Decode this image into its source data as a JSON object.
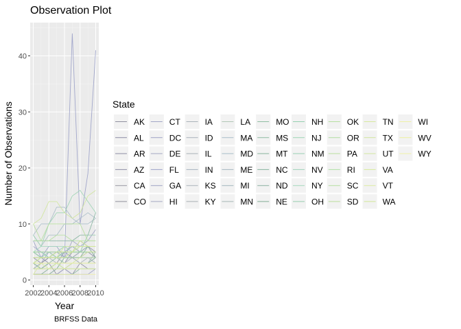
{
  "chart_data": {
    "type": "line",
    "title": "Observation Plot",
    "xlabel": "Year",
    "ylabel": "Number of Observations",
    "caption": "BRFSS Data",
    "xlim": [
      2002,
      2010
    ],
    "ylim": [
      0,
      45
    ],
    "x_ticks": [
      "2002",
      "2004",
      "2006",
      "2008",
      "2010"
    ],
    "y_ticks": [
      "0",
      "10",
      "20",
      "30",
      "40"
    ],
    "grid": true,
    "panel_background": "#ebebeb",
    "legend": {
      "title": "State",
      "placement": "right",
      "columns": 9
    },
    "x": [
      2002,
      2003,
      2004,
      2005,
      2006,
      2007,
      2008,
      2009,
      2010
    ],
    "series": [
      {
        "name": "AK",
        "color": "#8e8e9e",
        "values": [
          2,
          2,
          3,
          1,
          2,
          1,
          3,
          2,
          2
        ]
      },
      {
        "name": "AL",
        "color": "#8a8aa3",
        "values": [
          5,
          4,
          4,
          5,
          5,
          5,
          5,
          5,
          5
        ]
      },
      {
        "name": "AR",
        "color": "#8b8ba4",
        "values": [
          4,
          3,
          4,
          4,
          5,
          6,
          5,
          5,
          4
        ]
      },
      {
        "name": "AZ",
        "color": "#8e8ea6",
        "values": [
          3,
          4,
          3,
          3,
          3,
          5,
          7,
          6,
          5
        ]
      },
      {
        "name": "CA",
        "color": "#9696a0",
        "values": [
          3,
          2,
          3,
          3,
          5,
          4,
          5,
          5,
          5
        ]
      },
      {
        "name": "CO",
        "color": "#8f8f9a",
        "values": [
          3,
          3,
          4,
          4,
          4,
          5,
          5,
          6,
          6
        ]
      },
      {
        "name": "CT",
        "color": "#a2a6c6",
        "values": [
          6,
          5,
          5,
          5,
          5,
          4,
          4,
          5,
          5
        ]
      },
      {
        "name": "DC",
        "color": "#9c9fc4",
        "values": [
          1,
          1,
          1,
          1,
          2,
          1,
          1,
          1,
          2
        ]
      },
      {
        "name": "DE",
        "color": "#a4a8c2",
        "values": [
          3,
          3,
          3,
          3,
          3,
          3,
          3,
          3,
          3
        ]
      },
      {
        "name": "FL",
        "color": "#9aa0c8",
        "values": [
          7,
          4,
          6,
          6,
          4,
          44,
          10,
          19,
          41
        ]
      },
      {
        "name": "GA",
        "color": "#9da1c3",
        "values": [
          3,
          3,
          5,
          5,
          4,
          7,
          6,
          7,
          9
        ]
      },
      {
        "name": "HI",
        "color": "#a3a7c0",
        "values": [
          5,
          5,
          5,
          4,
          4,
          4,
          3,
          3,
          4
        ]
      },
      {
        "name": "IA",
        "color": "#a9b2b8",
        "values": [
          3,
          3,
          3,
          3,
          3,
          3,
          3,
          3,
          3
        ]
      },
      {
        "name": "ID",
        "color": "#a7b0b9",
        "values": [
          5,
          5,
          4,
          4,
          4,
          4,
          4,
          4,
          4
        ]
      },
      {
        "name": "IL",
        "color": "#a8b1b7",
        "values": [
          3,
          2,
          3,
          3,
          3,
          4,
          3,
          4,
          3
        ]
      },
      {
        "name": "IN",
        "color": "#a5b1bd",
        "values": [
          1,
          1,
          1,
          2,
          2,
          3,
          3,
          3,
          3
        ]
      },
      {
        "name": "KS",
        "color": "#aab3ba",
        "values": [
          4,
          4,
          4,
          3,
          3,
          3,
          3,
          3,
          3
        ]
      },
      {
        "name": "KY",
        "color": "#a6adb3",
        "values": [
          2,
          3,
          3,
          3,
          3,
          3,
          3,
          3,
          3
        ]
      },
      {
        "name": "LA",
        "color": "#b1c7b5",
        "values": [
          5,
          4,
          4,
          5,
          5,
          5,
          5,
          5,
          5
        ]
      },
      {
        "name": "MA",
        "color": "#a8bcc7",
        "values": [
          8,
          10,
          10,
          13,
          13,
          11,
          10,
          10,
          11
        ]
      },
      {
        "name": "MD",
        "color": "#a6bbc7",
        "values": [
          8,
          6,
          8,
          8,
          10,
          10,
          11,
          12,
          11
        ]
      },
      {
        "name": "ME",
        "color": "#a3b7c0",
        "values": [
          3,
          4,
          4,
          5,
          5,
          6,
          5,
          6,
          6
        ]
      },
      {
        "name": "MI",
        "color": "#9fb4bd",
        "values": [
          4,
          4,
          4,
          5,
          4,
          4,
          5,
          6,
          6
        ]
      },
      {
        "name": "MN",
        "color": "#a4b6b4",
        "values": [
          2,
          3,
          3,
          3,
          3,
          3,
          3,
          3,
          5
        ]
      },
      {
        "name": "MO",
        "color": "#8fbda2",
        "values": [
          3,
          2,
          3,
          4,
          3,
          3,
          3,
          3,
          4
        ]
      },
      {
        "name": "MS",
        "color": "#8dbaa0",
        "values": [
          2,
          2,
          2,
          3,
          3,
          3,
          3,
          3,
          3
        ]
      },
      {
        "name": "MT",
        "color": "#86b39b",
        "values": [
          1,
          1,
          1,
          1,
          1,
          1,
          2,
          2,
          2
        ]
      },
      {
        "name": "NC",
        "color": "#84b39d",
        "values": [
          7,
          7,
          7,
          7,
          7,
          7,
          8,
          8,
          12
        ]
      },
      {
        "name": "ND",
        "color": "#8aaf9f",
        "values": [
          1,
          1,
          1,
          2,
          2,
          2,
          2,
          2,
          2
        ]
      },
      {
        "name": "NE",
        "color": "#7da991",
        "values": [
          1,
          1,
          2,
          2,
          4,
          4,
          4,
          6,
          4
        ]
      },
      {
        "name": "NH",
        "color": "#93d0b0",
        "values": [
          5,
          5,
          4,
          4,
          5,
          5,
          5,
          5,
          5
        ]
      },
      {
        "name": "NJ",
        "color": "#9bd4b3",
        "values": [
          8,
          6,
          10,
          12,
          12,
          15,
          16,
          14,
          12
        ]
      },
      {
        "name": "NM",
        "color": "#99cfb2",
        "values": [
          3,
          4,
          4,
          5,
          6,
          5,
          6,
          6,
          6
        ]
      },
      {
        "name": "NV",
        "color": "#9ed2b8",
        "values": [
          2,
          2,
          2,
          3,
          2,
          2,
          2,
          2,
          2
        ]
      },
      {
        "name": "NY",
        "color": "#a3d7bc",
        "values": [
          5,
          6,
          6,
          6,
          6,
          6,
          6,
          6,
          6
        ]
      },
      {
        "name": "OH",
        "color": "#94ccac",
        "values": [
          5,
          4,
          5,
          4,
          4,
          5,
          5,
          8,
          8
        ]
      },
      {
        "name": "OK",
        "color": "#b6dfa0",
        "values": [
          3,
          3,
          3,
          3,
          3,
          3,
          3,
          3,
          3
        ]
      },
      {
        "name": "OR",
        "color": "#b0dca0",
        "values": [
          3,
          4,
          4,
          4,
          4,
          4,
          4,
          4,
          4
        ]
      },
      {
        "name": "PA",
        "color": "#b8de9e",
        "values": [
          10,
          7,
          10,
          10,
          10,
          10,
          10,
          7,
          7
        ]
      },
      {
        "name": "RI",
        "color": "#aee0a5",
        "values": [
          5,
          5,
          5,
          5,
          5,
          5,
          5,
          5,
          5
        ]
      },
      {
        "name": "SC",
        "color": "#b5e09f",
        "values": [
          7,
          7,
          7,
          8,
          8,
          7,
          7,
          7,
          7
        ]
      },
      {
        "name": "SD",
        "color": "#b9de99",
        "values": [
          2,
          2,
          2,
          2,
          2,
          2,
          2,
          2,
          2
        ]
      },
      {
        "name": "TN",
        "color": "#d6e89c",
        "values": [
          1,
          3,
          2,
          3,
          2,
          3,
          4,
          5,
          5
        ]
      },
      {
        "name": "TX",
        "color": "#cfe59a",
        "values": [
          10,
          11,
          14,
          14,
          12,
          11,
          12,
          15,
          16
        ]
      },
      {
        "name": "UT",
        "color": "#d3e79f",
        "values": [
          4,
          4,
          4,
          4,
          6,
          6,
          6,
          6,
          6
        ]
      },
      {
        "name": "VA",
        "color": "#d7ea98",
        "values": [
          3,
          4,
          4,
          4,
          4,
          5,
          7,
          6,
          6
        ]
      },
      {
        "name": "VT",
        "color": "#dbeb9f",
        "values": [
          3,
          3,
          3,
          3,
          3,
          3,
          3,
          3,
          3
        ]
      },
      {
        "name": "WA",
        "color": "#d0e594",
        "values": [
          4,
          4,
          4,
          5,
          5,
          5,
          6,
          6,
          6
        ]
      },
      {
        "name": "WI",
        "color": "#eef0a6",
        "values": [
          1,
          1,
          1,
          1,
          1,
          1,
          1,
          1,
          1
        ]
      },
      {
        "name": "WV",
        "color": "#ecef9c",
        "values": [
          3,
          3,
          3,
          3,
          3,
          3,
          3,
          3,
          3
        ]
      },
      {
        "name": "WY",
        "color": "#f0f2a8",
        "values": [
          2,
          2,
          2,
          2,
          2,
          2,
          2,
          2,
          2
        ]
      }
    ]
  }
}
